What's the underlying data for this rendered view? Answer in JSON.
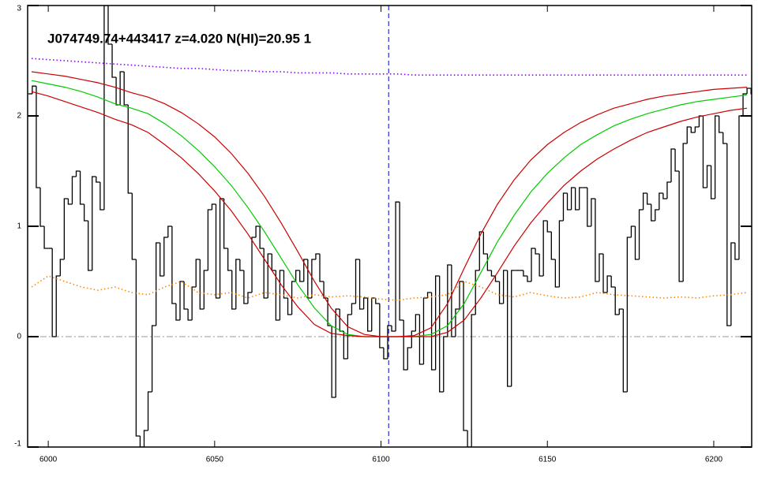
{
  "chart_data": {
    "type": "spectrum",
    "title": "J074749.74+443417 z=4.020 N(HI)=20.95 1",
    "xlim": [
      5993.8,
      6211.4
    ],
    "ylim": [
      -1,
      3
    ],
    "xticks": [
      6000,
      6050,
      6100,
      6150,
      6200
    ],
    "yticks": [
      -1,
      0,
      1,
      2,
      3
    ],
    "x": [
      5994,
      5995.2,
      5996.4,
      5997.6,
      5998.8,
      6000,
      6001.2,
      6002.4,
      6003.6,
      6004.8,
      6006,
      6007.2,
      6008.4,
      6009.6,
      6010.8,
      6012,
      6013.2,
      6014.4,
      6015.6,
      6016.8,
      6018,
      6019.2,
      6020.4,
      6021.6,
      6022.8,
      6024,
      6025.2,
      6026.4,
      6027.6,
      6028.8,
      6030,
      6031.2,
      6032.4,
      6033.6,
      6034.8,
      6036,
      6037.2,
      6038.4,
      6039.6,
      6040.8,
      6042,
      6043.2,
      6044.4,
      6045.6,
      6046.8,
      6048,
      6049.2,
      6050.4,
      6051.6,
      6052.8,
      6054,
      6055.2,
      6056.4,
      6057.6,
      6058.8,
      6060,
      6061.2,
      6062.4,
      6063.6,
      6064.8,
      6066,
      6067.2,
      6068.4,
      6069.6,
      6070.8,
      6072,
      6073.2,
      6074.4,
      6075.6,
      6076.8,
      6078,
      6079.2,
      6080.4,
      6081.6,
      6082.8,
      6084,
      6085.2,
      6086.4,
      6087.6,
      6088.8,
      6090,
      6091.2,
      6092.4,
      6093.6,
      6094.8,
      6096,
      6097.2,
      6098.4,
      6099.6,
      6100.8,
      6102,
      6103.2,
      6104.4,
      6105.6,
      6106.8,
      6108,
      6109.2,
      6110.4,
      6111.6,
      6112.8,
      6114,
      6115.2,
      6116.4,
      6117.6,
      6118.8,
      6120,
      6121.2,
      6122.4,
      6123.6,
      6124.8,
      6126,
      6127.2,
      6128.4,
      6129.6,
      6130.8,
      6132,
      6133.2,
      6134.4,
      6135.6,
      6136.8,
      6138,
      6139.2,
      6140.4,
      6141.6,
      6142.8,
      6144,
      6145.2,
      6146.4,
      6147.6,
      6148.8,
      6150,
      6151.2,
      6152.4,
      6153.6,
      6154.8,
      6156,
      6157.2,
      6158.4,
      6159.6,
      6160.8,
      6162,
      6163.2,
      6164.4,
      6165.6,
      6166.8,
      6168,
      6169.2,
      6170.4,
      6171.6,
      6172.8,
      6174,
      6175.2,
      6176.4,
      6177.6,
      6178.8,
      6180,
      6181.2,
      6182.4,
      6183.6,
      6184.8,
      6186,
      6187.2,
      6188.4,
      6189.6,
      6190.8,
      6192,
      6193.2,
      6194.4,
      6195.6,
      6196.8,
      6198,
      6199.2,
      6200.4,
      6201.6,
      6202.8,
      6204,
      6205.2,
      6206.4,
      6207.6,
      6208.8,
      6210,
      6211.2
    ],
    "series": [
      {
        "color": "#000000",
        "style": "step",
        "values": [
          2.2,
          2.27,
          1.35,
          1.0,
          0.8,
          0.8,
          0.0,
          0.55,
          0.7,
          1.25,
          1.2,
          1.45,
          1.5,
          1.2,
          1.05,
          0.6,
          1.45,
          1.4,
          1.15,
          3.0,
          2.65,
          2.35,
          2.1,
          2.4,
          2.1,
          1.3,
          0.7,
          -0.9,
          -1.0,
          -0.85,
          -0.5,
          0.1,
          0.85,
          0.55,
          0.9,
          1.0,
          0.3,
          0.15,
          0.5,
          0.25,
          0.15,
          0.45,
          0.7,
          0.25,
          0.6,
          1.15,
          1.2,
          0.35,
          1.25,
          0.8,
          0.6,
          0.25,
          0.7,
          0.6,
          0.3,
          0.4,
          0.9,
          1.0,
          0.8,
          0.35,
          0.75,
          0.6,
          0.15,
          0.6,
          0.35,
          0.2,
          0.5,
          0.6,
          0.5,
          0.7,
          0.35,
          0.7,
          0.75,
          0.5,
          0.35,
          0.1,
          -0.55,
          0.25,
          0.05,
          -0.2,
          0.2,
          0.3,
          0.7,
          0.25,
          0.35,
          0.05,
          0.35,
          0.3,
          -0.1,
          -0.2,
          0.1,
          0.05,
          1.22,
          0.15,
          -0.3,
          -0.1,
          0.05,
          0.2,
          -0.25,
          0.35,
          0.4,
          -0.3,
          0.55,
          -0.5,
          0.0,
          0.65,
          0.0,
          0.25,
          0.5,
          -0.85,
          -1.0,
          0.2,
          0.6,
          0.95,
          0.75,
          0.6,
          0.55,
          0.5,
          0.3,
          0.6,
          -0.45,
          0.6,
          0.6,
          0.6,
          0.55,
          0.5,
          0.8,
          0.75,
          0.55,
          1.05,
          0.95,
          0.7,
          0.45,
          1.05,
          1.3,
          1.15,
          1.35,
          1.15,
          1.35,
          1.35,
          1.0,
          1.25,
          0.5,
          0.75,
          0.4,
          0.55,
          0.45,
          0.2,
          0.25,
          -0.5,
          0.9,
          1.0,
          0.7,
          1.15,
          1.3,
          1.2,
          1.05,
          1.15,
          1.3,
          1.25,
          1.4,
          1.7,
          1.5,
          0.5,
          1.75,
          1.9,
          1.85,
          1.9,
          2.0,
          1.35,
          1.55,
          1.25,
          2.0,
          1.85,
          1.75,
          0.1,
          0.85,
          0.7,
          2.0,
          2.2,
          2.25,
          2.2
        ]
      },
      {
        "color": "#00cc00",
        "style": "solid",
        "x": [
          5995,
          6000,
          6005,
          6010,
          6015,
          6020,
          6025,
          6030,
          6035,
          6040,
          6045,
          6050,
          6055,
          6060,
          6065,
          6070,
          6075,
          6080,
          6085,
          6090,
          6095,
          6100,
          6105,
          6110,
          6115,
          6120,
          6125,
          6130,
          6135,
          6140,
          6145,
          6150,
          6155,
          6160,
          6165,
          6170,
          6175,
          6180,
          6185,
          6190,
          6195,
          6200,
          6205,
          6210
        ],
        "values": [
          2.32,
          2.29,
          2.26,
          2.22,
          2.17,
          2.11,
          2.07,
          2.02,
          1.93,
          1.82,
          1.69,
          1.54,
          1.37,
          1.17,
          0.95,
          0.71,
          0.47,
          0.26,
          0.1,
          0.02,
          0,
          0,
          0,
          0,
          0.02,
          0.1,
          0.3,
          0.58,
          0.86,
          1.1,
          1.31,
          1.48,
          1.62,
          1.74,
          1.83,
          1.91,
          1.97,
          2.02,
          2.06,
          2.1,
          2.13,
          2.15,
          2.17,
          2.19
        ]
      },
      {
        "color": "#cc0000",
        "style": "solid",
        "x": [
          5995,
          6000,
          6005,
          6010,
          6015,
          6020,
          6025,
          6030,
          6035,
          6040,
          6045,
          6050,
          6055,
          6060,
          6065,
          6070,
          6075,
          6080,
          6085,
          6090,
          6095,
          6100,
          6105,
          6110,
          6115,
          6120,
          6125,
          6130,
          6135,
          6140,
          6145,
          6150,
          6155,
          6160,
          6165,
          6170,
          6175,
          6180,
          6185,
          6190,
          6195,
          6200,
          6205,
          6210
        ],
        "values": [
          2.4,
          2.38,
          2.36,
          2.33,
          2.3,
          2.26,
          2.21,
          2.17,
          2.11,
          2.03,
          1.93,
          1.81,
          1.66,
          1.48,
          1.27,
          1.03,
          0.77,
          0.5,
          0.26,
          0.09,
          0.02,
          0,
          0,
          0.01,
          0.08,
          0.3,
          0.62,
          0.93,
          1.2,
          1.42,
          1.6,
          1.74,
          1.85,
          1.94,
          2.01,
          2.07,
          2.11,
          2.15,
          2.18,
          2.2,
          2.22,
          2.24,
          2.25,
          2.26
        ]
      },
      {
        "color": "#cc0000",
        "style": "solid",
        "x": [
          5995,
          6000,
          6005,
          6010,
          6015,
          6020,
          6025,
          6030,
          6035,
          6040,
          6045,
          6050,
          6055,
          6060,
          6065,
          6070,
          6075,
          6080,
          6085,
          6090,
          6095,
          6100,
          6105,
          6110,
          6115,
          6120,
          6125,
          6130,
          6135,
          6140,
          6145,
          6150,
          6155,
          6160,
          6165,
          6170,
          6175,
          6180,
          6185,
          6190,
          6195,
          6200,
          6205,
          6210
        ],
        "values": [
          2.22,
          2.18,
          2.13,
          2.08,
          2.03,
          1.97,
          1.92,
          1.85,
          1.74,
          1.62,
          1.48,
          1.32,
          1.14,
          0.93,
          0.7,
          0.47,
          0.27,
          0.11,
          0.03,
          0.01,
          0,
          0,
          0,
          0,
          0,
          0.04,
          0.15,
          0.35,
          0.58,
          0.82,
          1.03,
          1.21,
          1.37,
          1.5,
          1.61,
          1.7,
          1.78,
          1.85,
          1.9,
          1.95,
          1.99,
          2.02,
          2.05,
          2.07
        ]
      },
      {
        "color": "#8800ff",
        "style": "dotted",
        "x": [
          5995,
          6000,
          6005,
          6010,
          6015,
          6020,
          6025,
          6030,
          6035,
          6040,
          6045,
          6050,
          6055,
          6060,
          6065,
          6070,
          6075,
          6080,
          6085,
          6090,
          6095,
          6100,
          6105,
          6110,
          6115,
          6120,
          6125,
          6130,
          6135,
          6140,
          6145,
          6150,
          6155,
          6160,
          6165,
          6170,
          6175,
          6180,
          6185,
          6190,
          6195,
          6200,
          6205,
          6210
        ],
        "values": [
          2.52,
          2.51,
          2.5,
          2.49,
          2.48,
          2.47,
          2.46,
          2.45,
          2.44,
          2.43,
          2.43,
          2.42,
          2.41,
          2.41,
          2.4,
          2.4,
          2.39,
          2.39,
          2.39,
          2.38,
          2.38,
          2.38,
          2.38,
          2.37,
          2.37,
          2.37,
          2.37,
          2.37,
          2.37,
          2.37,
          2.37,
          2.37,
          2.37,
          2.37,
          2.37,
          2.37,
          2.37,
          2.37,
          2.37,
          2.37,
          2.37,
          2.37,
          2.37,
          2.37
        ]
      },
      {
        "color": "#ff8800",
        "style": "dotted",
        "x": [
          5995,
          6000,
          6005,
          6010,
          6015,
          6020,
          6025,
          6030,
          6035,
          6040,
          6045,
          6050,
          6055,
          6060,
          6065,
          6070,
          6075,
          6080,
          6085,
          6090,
          6095,
          6100,
          6105,
          6110,
          6115,
          6120,
          6125,
          6130,
          6135,
          6140,
          6145,
          6150,
          6155,
          6160,
          6165,
          6170,
          6175,
          6180,
          6185,
          6190,
          6195,
          6200,
          6205,
          6210
        ],
        "values": [
          0.45,
          0.55,
          0.5,
          0.45,
          0.42,
          0.45,
          0.4,
          0.38,
          0.45,
          0.5,
          0.4,
          0.38,
          0.4,
          0.35,
          0.4,
          0.38,
          0.35,
          0.38,
          0.36,
          0.37,
          0.36,
          0.34,
          0.33,
          0.35,
          0.36,
          0.38,
          0.5,
          0.45,
          0.38,
          0.36,
          0.4,
          0.37,
          0.35,
          0.36,
          0.4,
          0.38,
          0.37,
          0.36,
          0.35,
          0.36,
          0.35,
          0.37,
          0.38,
          0.4
        ]
      }
    ],
    "reference_lines": [
      {
        "axis": "x",
        "value": 6102.3,
        "color": "#0000cc",
        "style": "dashed"
      },
      {
        "axis": "y",
        "value": 0,
        "color": "#999999",
        "style": "dashdot"
      }
    ]
  }
}
